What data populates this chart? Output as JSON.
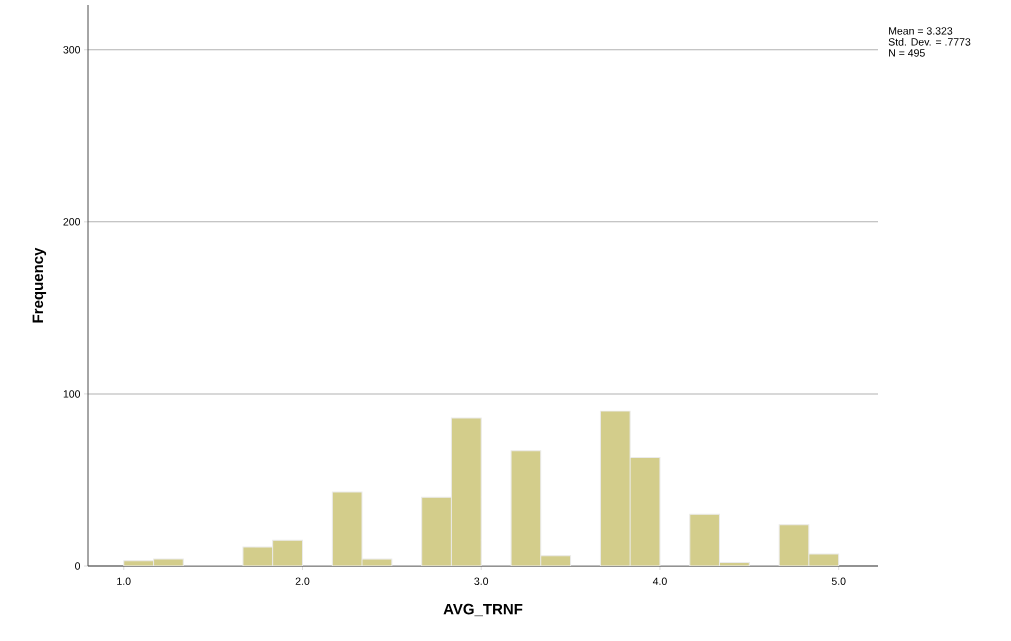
{
  "chart_data": {
    "type": "histogram",
    "xlabel": "AVG_TRNF",
    "ylabel": "Frequency",
    "bins": [
      1.0,
      1.167,
      1.333,
      1.5,
      1.667,
      1.833,
      2.0,
      2.167,
      2.333,
      2.5,
      2.667,
      2.833,
      3.0,
      3.167,
      3.333,
      3.5,
      3.667,
      3.833,
      4.0,
      4.167,
      4.333,
      4.5,
      4.667,
      4.833,
      5.0
    ],
    "values": [
      3,
      4,
      0,
      0,
      11,
      15,
      0,
      43,
      4,
      0,
      40,
      86,
      0,
      67,
      6,
      0,
      90,
      63,
      0,
      30,
      2,
      0,
      24,
      7
    ],
    "color": "#d3cd8b",
    "xlim": [
      0.8,
      5.22
    ],
    "xticks": [
      {
        "value": 1,
        "label": "1.0"
      },
      {
        "value": 2,
        "label": "2.0"
      },
      {
        "value": 3,
        "label": "3.0"
      },
      {
        "value": 4,
        "label": "4.0"
      },
      {
        "value": 5,
        "label": "5.0"
      }
    ],
    "ylim": [
      0,
      326
    ],
    "yticks": [
      0,
      100,
      200,
      300
    ],
    "grid": "y",
    "annotations": [
      "Mean = 3.323",
      "Std. Dev. = .7773",
      "N = 495"
    ]
  }
}
